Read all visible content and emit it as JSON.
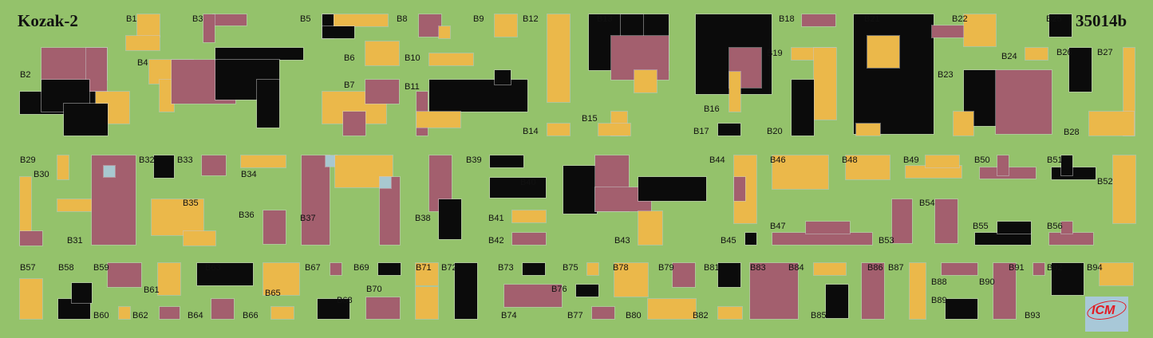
{
  "sheet": {
    "title": "Kozak-2",
    "code": "35014b"
  },
  "logo": {
    "text": "ICM"
  },
  "colors": {
    "background": "#94c26b",
    "yellow": "#ebb84a",
    "mauve": "#a35f6e",
    "black": "#0b0b0b",
    "light_blue": "#a8c8d0"
  },
  "labels": [
    "B1",
    "B2",
    "B3",
    "B4",
    "B5",
    "B6",
    "B7",
    "B8",
    "B9",
    "B10",
    "B11",
    "B12",
    "B13",
    "B14",
    "B15",
    "B16",
    "B17",
    "B18",
    "B19",
    "B20",
    "B21",
    "B22",
    "B23",
    "B24",
    "B25",
    "B26",
    "B27",
    "B28",
    "B29",
    "B30",
    "B31",
    "B32",
    "B33",
    "B34",
    "B35",
    "B36",
    "B37",
    "B38",
    "B39",
    "B40",
    "B41",
    "B42",
    "B43",
    "B44",
    "B45",
    "B46",
    "B47",
    "B48",
    "B49",
    "B50",
    "B51",
    "B52",
    "B53",
    "B54",
    "B55",
    "B56",
    "B57",
    "B58",
    "B59",
    "B60",
    "B61",
    "B62",
    "B63",
    "B64",
    "B65",
    "B66",
    "B67",
    "B68",
    "B69",
    "B70",
    "B71",
    "B72",
    "B73",
    "B74",
    "B75",
    "B76",
    "B77",
    "B78",
    "B79",
    "B80",
    "B81",
    "B82",
    "B83",
    "B84",
    "B85",
    "B86",
    "B87",
    "B88",
    "B89",
    "B90",
    "B91",
    "B92",
    "B93",
    "B94"
  ]
}
